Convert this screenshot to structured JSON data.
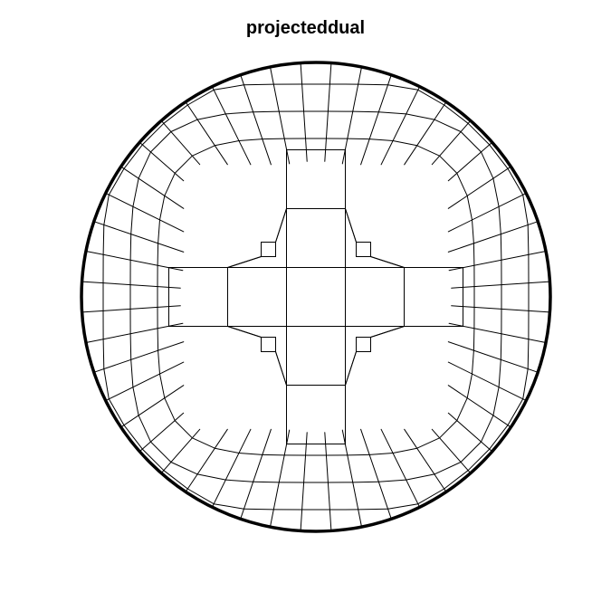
{
  "figure": {
    "title": "projecteddual"
  },
  "mesh": {
    "boundary": "circle",
    "element_type": "quadrilateral",
    "symmetry": "four-fold",
    "colors": {
      "edges": "#000000",
      "boundary": "#000000",
      "background": "#ffffff"
    }
  }
}
